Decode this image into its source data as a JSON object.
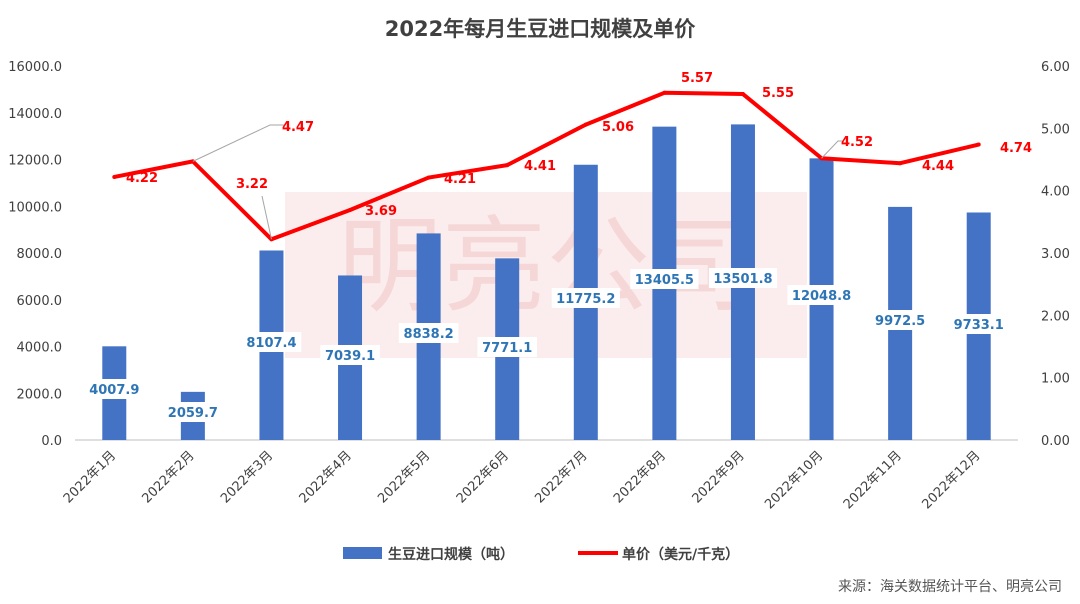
{
  "chart_data": {
    "type": "bar+line",
    "title": "2022年每月生豆进口规模及单价",
    "categories": [
      "2022年1月",
      "2022年2月",
      "2022年3月",
      "2022年4月",
      "2022年5月",
      "2022年6月",
      "2022年7月",
      "2022年8月",
      "2022年9月",
      "2022年10月",
      "2022年11月",
      "2022年12月"
    ],
    "series": [
      {
        "name": "生豆进口规模（吨）",
        "type": "bar",
        "axis": "left",
        "color": "#4472C4",
        "label_color": "#2E75B6",
        "values": [
          4007.9,
          2059.7,
          8107.4,
          7039.1,
          8838.2,
          7771.1,
          11775.2,
          13405.5,
          13501.8,
          12048.8,
          9972.5,
          9733.1
        ]
      },
      {
        "name": "单价（美元/千克）",
        "type": "line",
        "axis": "right",
        "color": "#FF0000",
        "values": [
          4.22,
          4.47,
          3.22,
          3.69,
          4.21,
          4.41,
          5.06,
          5.57,
          5.55,
          4.52,
          4.44,
          4.74
        ]
      }
    ],
    "y_left": {
      "min": 0,
      "max": 16000,
      "step": 2000,
      "ticks": [
        "0.0",
        "2000.0",
        "4000.0",
        "6000.0",
        "8000.0",
        "10000.0",
        "12000.0",
        "14000.0",
        "16000.0"
      ]
    },
    "y_right": {
      "min": 0,
      "max": 6,
      "step": 1,
      "ticks": [
        "0.00",
        "1.00",
        "2.00",
        "3.00",
        "4.00",
        "5.00",
        "6.00"
      ]
    },
    "grid": false,
    "legend_position": "bottom",
    "watermark": "明亮公司"
  },
  "source_text": "来源：海关数据统计平台、明亮公司"
}
